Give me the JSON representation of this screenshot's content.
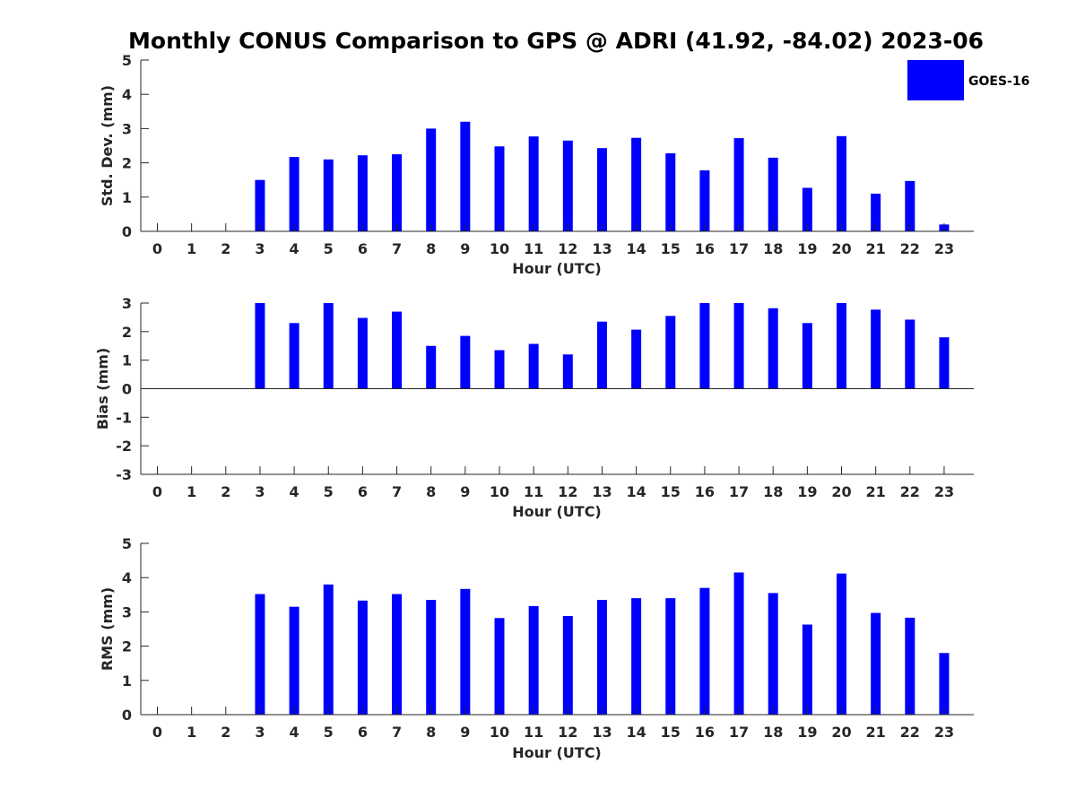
{
  "title": "Monthly CONUS Comparison to GPS @ ADRI (41.92, -84.02) 2023-06",
  "legend": {
    "label": "GOES-16",
    "color": "#0000ff",
    "placement": "top-right"
  },
  "chart_data": [
    {
      "type": "bar",
      "categories": [
        "0",
        "1",
        "2",
        "3",
        "4",
        "5",
        "6",
        "7",
        "8",
        "9",
        "10",
        "11",
        "12",
        "13",
        "14",
        "15",
        "16",
        "17",
        "18",
        "19",
        "20",
        "21",
        "22",
        "23"
      ],
      "series": [
        {
          "name": "GOES-16",
          "values": [
            null,
            null,
            null,
            1.5,
            2.17,
            2.1,
            2.22,
            2.25,
            3.0,
            3.2,
            2.48,
            2.77,
            2.65,
            2.43,
            2.73,
            2.28,
            1.78,
            2.72,
            2.15,
            1.27,
            2.78,
            1.1,
            1.47,
            0.2
          ],
          "color": "#0000ff"
        }
      ],
      "xlabel": "Hour (UTC)",
      "ylabel": "Std. Dev. (mm)",
      "ylim": [
        0,
        5
      ],
      "yticks": [
        "0",
        "1",
        "2",
        "3",
        "4",
        "5"
      ],
      "grid": false
    },
    {
      "type": "bar",
      "categories": [
        "0",
        "1",
        "2",
        "3",
        "4",
        "5",
        "6",
        "7",
        "8",
        "9",
        "10",
        "11",
        "12",
        "13",
        "14",
        "15",
        "16",
        "17",
        "18",
        "19",
        "20",
        "21",
        "22",
        "23"
      ],
      "series": [
        {
          "name": "GOES-16",
          "values": [
            null,
            null,
            null,
            3.0,
            2.3,
            3.0,
            2.48,
            2.7,
            1.5,
            1.85,
            1.35,
            1.57,
            1.2,
            2.35,
            2.07,
            2.55,
            3.0,
            3.0,
            2.82,
            2.3,
            3.0,
            2.77,
            2.42,
            1.8
          ],
          "color": "#0000ff"
        }
      ],
      "xlabel": "Hour (UTC)",
      "ylabel": "Bias (mm)",
      "ylim": [
        -3,
        3
      ],
      "yticks": [
        "-3",
        "-2",
        "-1",
        "0",
        "1",
        "2",
        "3"
      ],
      "grid": false
    },
    {
      "type": "bar",
      "categories": [
        "0",
        "1",
        "2",
        "3",
        "4",
        "5",
        "6",
        "7",
        "8",
        "9",
        "10",
        "11",
        "12",
        "13",
        "14",
        "15",
        "16",
        "17",
        "18",
        "19",
        "20",
        "21",
        "22",
        "23"
      ],
      "series": [
        {
          "name": "GOES-16",
          "values": [
            null,
            null,
            null,
            3.52,
            3.15,
            3.8,
            3.33,
            3.52,
            3.35,
            3.67,
            2.82,
            3.17,
            2.88,
            3.35,
            3.4,
            3.4,
            3.7,
            4.15,
            3.55,
            2.63,
            4.12,
            2.97,
            2.83,
            1.8
          ],
          "color": "#0000ff"
        }
      ],
      "xlabel": "Hour (UTC)",
      "ylabel": "RMS (mm)",
      "ylim": [
        0,
        5
      ],
      "yticks": [
        "0",
        "1",
        "2",
        "3",
        "4",
        "5"
      ],
      "grid": false
    }
  ]
}
